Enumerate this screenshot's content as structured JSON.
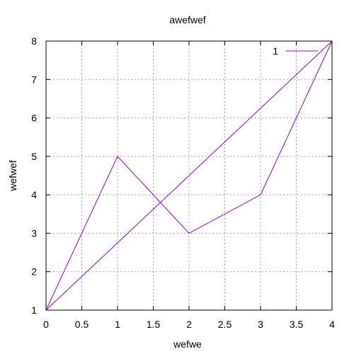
{
  "chart_data": {
    "type": "line",
    "title": "awefwef",
    "xlabel": "wefwe",
    "ylabel": "wefwef",
    "xlim": [
      0,
      4
    ],
    "ylim": [
      1,
      8
    ],
    "x_ticks": [
      "0",
      "0.5",
      "1",
      "1.5",
      "2",
      "2.5",
      "3",
      "3.5",
      "4"
    ],
    "y_ticks": [
      "1",
      "2",
      "3",
      "4",
      "5",
      "6",
      "7",
      "8"
    ],
    "grid": true,
    "legend_placement": "top-right",
    "legend": [
      "1"
    ],
    "series": [
      {
        "name": "1",
        "color": "#9400d3",
        "x": [
          0,
          1,
          2,
          3,
          4
        ],
        "y": [
          1,
          5,
          3,
          4,
          8
        ]
      },
      {
        "color": "#9400d3",
        "x": [
          0,
          4
        ],
        "y": [
          1,
          8
        ]
      }
    ]
  }
}
